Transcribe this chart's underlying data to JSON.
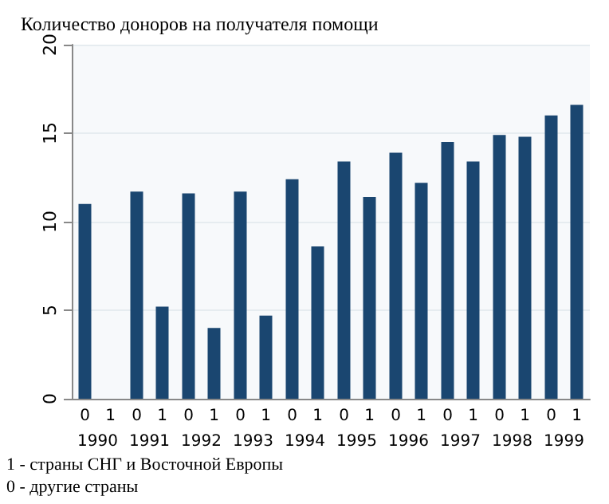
{
  "chart_data": {
    "type": "bar",
    "title": "Количество доноров на получателя помощи",
    "categories": [
      "1990",
      "1991",
      "1992",
      "1993",
      "1994",
      "1995",
      "1996",
      "1997",
      "1998",
      "1999"
    ],
    "series": [
      {
        "name": "0",
        "color": "#1a4670",
        "values": [
          11.0,
          11.7,
          11.6,
          11.7,
          12.4,
          13.4,
          13.9,
          14.5,
          14.9,
          16.0
        ]
      },
      {
        "name": "1",
        "color": "#1a4670",
        "values": [
          null,
          5.2,
          4.0,
          4.7,
          8.6,
          11.4,
          12.2,
          13.4,
          14.8,
          16.6
        ]
      }
    ],
    "ylim": [
      0,
      20
    ],
    "yticks": [
      0,
      5,
      10,
      15,
      20
    ],
    "grid": "y",
    "legend": false,
    "annotations": [
      "1 - страны СНГ и Восточной Европы",
      "0 - другие страны"
    ]
  }
}
